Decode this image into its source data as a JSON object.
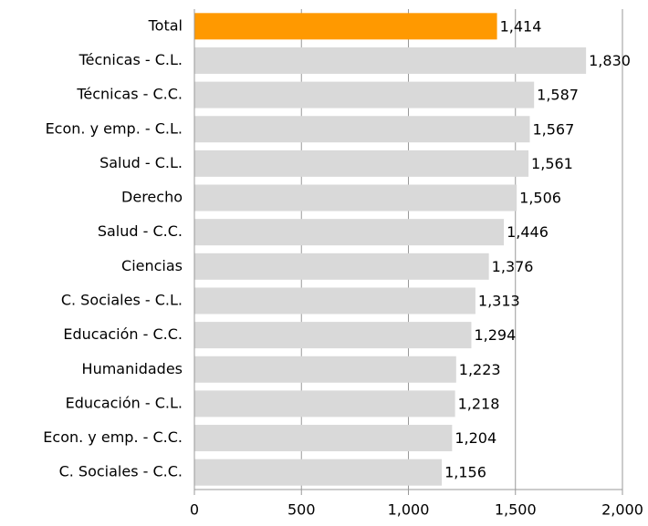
{
  "chart_data": {
    "type": "hbar",
    "categories": [
      "Total",
      "Técnicas - C.L.",
      "Técnicas - C.C.",
      "Econ. y emp. - C.L.",
      "Salud - C.L.",
      "Derecho",
      "Salud - C.C.",
      "Ciencias",
      "C. Sociales - C.L.",
      "Educación - C.C.",
      "Humanidades",
      "Educación - C.L.",
      "Econ. y emp. - C.C.",
      "C. Sociales - C.C."
    ],
    "values": [
      1414,
      1830,
      1587,
      1567,
      1561,
      1506,
      1446,
      1376,
      1313,
      1294,
      1223,
      1218,
      1204,
      1156
    ],
    "value_labels": [
      "1,414",
      "1,830",
      "1,587",
      "1,567",
      "1,561",
      "1,506",
      "1,446",
      "1,376",
      "1,313",
      "1,294",
      "1,223",
      "1,218",
      "1,204",
      "1,156"
    ],
    "colors": [
      "#ff9900",
      "#d9d9d9",
      "#d9d9d9",
      "#d9d9d9",
      "#d9d9d9",
      "#d9d9d9",
      "#d9d9d9",
      "#d9d9d9",
      "#d9d9d9",
      "#d9d9d9",
      "#d9d9d9",
      "#d9d9d9",
      "#d9d9d9",
      "#d9d9d9"
    ],
    "xlim": [
      0,
      2000
    ],
    "xticks": [
      0,
      500,
      {
        "value": 1000,
        "label": "1,000"
      },
      {
        "value": 1500,
        "label": "1,500"
      },
      {
        "value": 2000,
        "label": "2,000"
      }
    ],
    "grid": true
  }
}
